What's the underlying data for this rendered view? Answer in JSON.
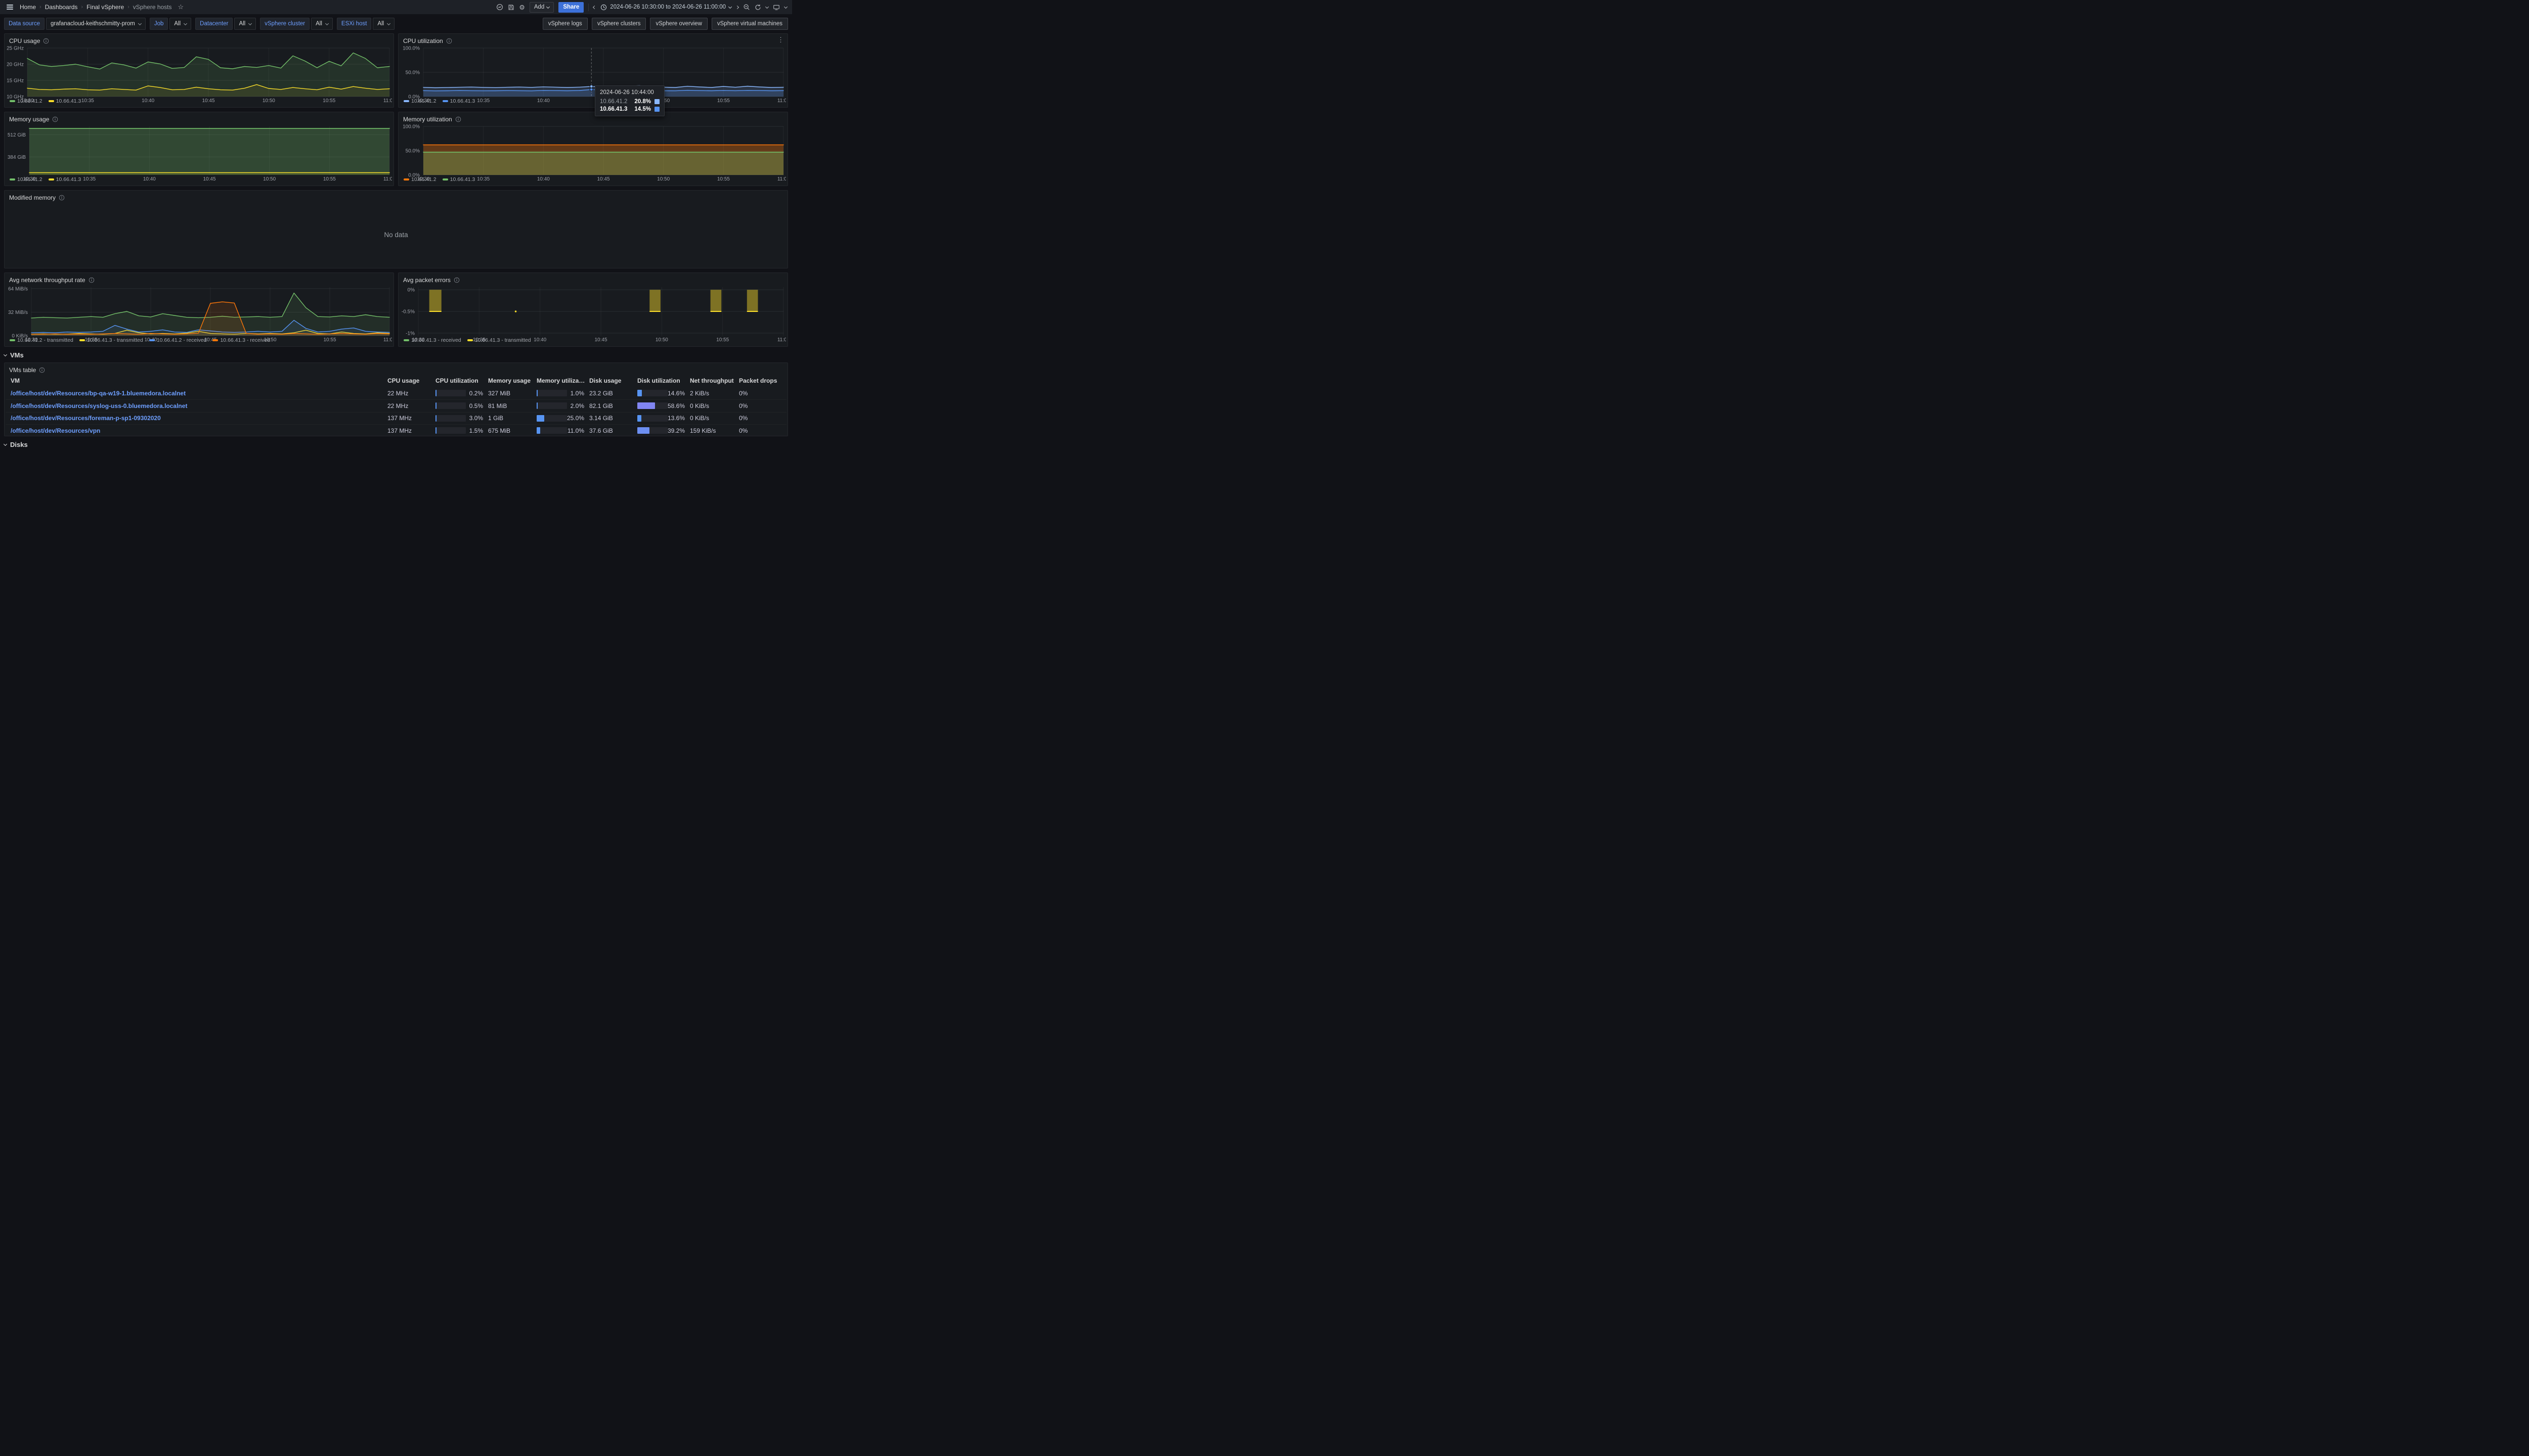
{
  "colors": {
    "accent_blue": "#3d71d9",
    "link_blue": "#6e9fff"
  },
  "topbar": {
    "breadcrumbs": [
      {
        "label": "Home"
      },
      {
        "label": "Dashboards"
      },
      {
        "label": "Final vSphere"
      },
      {
        "label": "vSphere hosts"
      }
    ],
    "add_label": "Add",
    "share_label": "Share",
    "time_range": "2024-06-26 10:30:00 to 2024-06-26 11:00:00"
  },
  "filters": {
    "data_source": {
      "label": "Data source",
      "value": "grafanacloud-keithschmitty-prom"
    },
    "items": [
      {
        "label": "Job",
        "value": "All"
      },
      {
        "label": "Datacenter",
        "value": "All"
      },
      {
        "label": "vSphere cluster",
        "value": "All"
      },
      {
        "label": "ESXi host",
        "value": "All"
      }
    ],
    "nav_buttons": [
      "vSphere logs",
      "vSphere clusters",
      "vSphere overview",
      "vSphere virtual machines"
    ]
  },
  "sections": {
    "vms_label": "VMs",
    "disks_label": "Disks"
  },
  "no_data_panel": {
    "title": "Modified memory",
    "message": "No data"
  },
  "tooltip": {
    "title": "2024-06-26 10:44:00",
    "rows": [
      {
        "name": "10.66.41.2",
        "value": "20.8%",
        "color": "#8ab8ff",
        "bold": false
      },
      {
        "name": "10.66.41.3",
        "value": "14.5%",
        "color": "#5794f2",
        "bold": true
      }
    ]
  },
  "chart_data": [
    {
      "type": "line",
      "title": "CPU usage",
      "minutes": 30,
      "gutter": 42,
      "ylim": [
        10,
        25
      ],
      "yticks": [
        {
          "v": 25,
          "label": "25 GHz"
        },
        {
          "v": 20,
          "label": "20 GHz"
        },
        {
          "v": 15,
          "label": "15 GHz"
        },
        {
          "v": 10,
          "label": "10 GHz"
        }
      ],
      "xticks": [
        "10:30",
        "10:35",
        "10:40",
        "10:45",
        "10:50",
        "10:55",
        "11:00"
      ],
      "series": [
        {
          "name": "10.66.41.2",
          "color": "#73bf69",
          "fill": 0.14,
          "values": [
            21.8,
            19.8,
            19.3,
            19.6,
            20.0,
            19.2,
            18.5,
            20.4,
            19.8,
            18.8,
            20.7,
            20.1,
            18.7,
            19.0,
            22.3,
            21.5,
            18.9,
            18.6,
            19.3,
            19.0,
            19.6,
            18.8,
            22.6,
            21.0,
            18.9,
            20.9,
            19.5,
            23.5,
            21.8,
            18.9,
            19.3
          ]
        },
        {
          "name": "10.66.41.3",
          "color": "#fade2a",
          "fill": 0.08,
          "values": [
            12.6,
            12.2,
            12.1,
            12.3,
            12.4,
            12.1,
            12.0,
            12.4,
            12.2,
            12.0,
            13.3,
            12.8,
            12.1,
            12.2,
            12.9,
            12.4,
            12.1,
            12.0,
            12.6,
            13.7,
            12.5,
            12.2,
            12.8,
            12.4,
            12.1,
            12.9,
            12.3,
            13.1,
            12.6,
            12.2,
            12.4
          ]
        }
      ]
    },
    {
      "type": "line",
      "title": "CPU utilization",
      "minutes": 30,
      "gutter": 46,
      "ylim": [
        0,
        100
      ],
      "yticks": [
        {
          "v": 100,
          "label": "100.0%"
        },
        {
          "v": 50,
          "label": "50.0%"
        },
        {
          "v": 0,
          "label": "0.0%"
        }
      ],
      "xticks": [
        "10:30",
        "10:35",
        "10:40",
        "10:45",
        "10:50",
        "10:55",
        "11:00"
      ],
      "crosshair": {
        "m": 14
      },
      "series": [
        {
          "name": "10.66.41.2",
          "color": "#8ab8ff",
          "fill": 0.16,
          "values": [
            19.0,
            18.2,
            18.6,
            19.2,
            19.6,
            19.0,
            18.4,
            19.2,
            19.6,
            19.0,
            20.0,
            19.4,
            18.8,
            19.4,
            20.8,
            20.2,
            19.4,
            21.6,
            22.4,
            19.8,
            19.4,
            18.8,
            21.2,
            19.8,
            18.8,
            20.8,
            19.2,
            21.4,
            19.8,
            18.8,
            19.2
          ]
        },
        {
          "name": "10.66.41.3",
          "color": "#5794f2",
          "fill": 0.16,
          "values": [
            12.2,
            11.8,
            12.0,
            12.4,
            12.1,
            11.9,
            12.0,
            12.3,
            12.1,
            11.8,
            12.6,
            12.3,
            12.0,
            12.5,
            14.5,
            13.2,
            12.3,
            12.6,
            13.1,
            12.4,
            12.0,
            11.9,
            12.9,
            12.3,
            12.0,
            12.6,
            12.1,
            12.7,
            12.4,
            12.0,
            12.2
          ]
        }
      ]
    },
    {
      "type": "line",
      "title": "Memory usage",
      "minutes": 30,
      "gutter": 46,
      "ylim": [
        280,
        560
      ],
      "yticks": [
        {
          "v": 512,
          "label": "512 GiB"
        },
        {
          "v": 384,
          "label": "384 GiB"
        }
      ],
      "xticks": [
        "10:30",
        "10:35",
        "10:40",
        "10:45",
        "10:50",
        "10:55",
        "11:00"
      ],
      "series": [
        {
          "name": "10.66.41.2",
          "color": "#73bf69",
          "fill": 0.28,
          "width": 1.6,
          "values": [
            548,
            548
          ]
        },
        {
          "name": "10.66.41.3",
          "color": "#fade2a",
          "fill": 0.1,
          "width": 1.6,
          "values": [
            293,
            293
          ]
        }
      ]
    },
    {
      "type": "line",
      "title": "Memory utilization",
      "minutes": 30,
      "gutter": 46,
      "ylim": [
        0,
        100
      ],
      "yticks": [
        {
          "v": 100,
          "label": "100.0%"
        },
        {
          "v": 50,
          "label": "50.0%"
        },
        {
          "v": 0,
          "label": "0.0%"
        }
      ],
      "xticks": [
        "10:30",
        "10:35",
        "10:40",
        "10:45",
        "10:50",
        "10:55",
        "11:00"
      ],
      "series": [
        {
          "name": "10.66.41.2",
          "color": "#ff780a",
          "fill": 0.32,
          "width": 1.6,
          "values": [
            62,
            62
          ]
        },
        {
          "name": "10.66.41.3",
          "color": "#73bf69",
          "fill": 0.32,
          "width": 1.6,
          "values": [
            47,
            47
          ]
        }
      ]
    },
    {
      "type": "line",
      "title": "Avg network throughput rate",
      "minutes": 30,
      "gutter": 50,
      "ylim": [
        0,
        66
      ],
      "yticks": [
        {
          "v": 64,
          "label": "64 MiB/s"
        },
        {
          "v": 32,
          "label": "32 MiB/s"
        },
        {
          "v": 0,
          "label": "0 KiB/s"
        }
      ],
      "xticks": [
        "10:30",
        "10:35",
        "10:40",
        "10:45",
        "10:50",
        "10:55",
        "11:00"
      ],
      "series": [
        {
          "name": "10.66.41.2 - transmitted",
          "color": "#73bf69",
          "fill": 0.12,
          "values": [
            24,
            25,
            24.5,
            24,
            25,
            26,
            25,
            30,
            33,
            27,
            25.5,
            30,
            27.5,
            25,
            24.5,
            25,
            26.5,
            25,
            25.5,
            26,
            25,
            26,
            58,
            38,
            26,
            25.5,
            27,
            26,
            28.5,
            26,
            25
          ]
        },
        {
          "name": "10.66.41.3 - transmitted",
          "color": "#fade2a",
          "fill": 0.08,
          "values": [
            2,
            2.5,
            2,
            2.2,
            3,
            2.5,
            2,
            3,
            7.5,
            4,
            2.5,
            3,
            2.5,
            3.5,
            6,
            3,
            2.5,
            2,
            3,
            2.5,
            3,
            2.5,
            4,
            7.5,
            3,
            2.5,
            5,
            3,
            2.5,
            4,
            3
          ]
        },
        {
          "name": "10.66.41.2 - received",
          "color": "#5794f2",
          "fill": 0.1,
          "values": [
            4,
            4.5,
            4,
            5,
            4.5,
            5,
            6,
            14,
            9,
            5,
            6,
            8,
            5,
            4.5,
            8,
            6.5,
            5,
            4.5,
            5,
            6,
            5,
            6,
            21,
            10,
            5,
            6,
            9,
            10.5,
            6,
            5,
            4.5
          ]
        },
        {
          "name": "10.66.41.3 - received",
          "color": "#ff780a",
          "fill": 0.12,
          "values": [
            2,
            2,
            2.5,
            2,
            2.2,
            2,
            2.5,
            3,
            2.5,
            2,
            3,
            2.5,
            2,
            2.5,
            3.5,
            44,
            46,
            44.5,
            3,
            2,
            2.5,
            2,
            3,
            2.5,
            2,
            2.5,
            3,
            2.5,
            2,
            3,
            2.5
          ]
        }
      ]
    },
    {
      "type": "bars",
      "title": "Avg packet errors",
      "minutes": 30,
      "gutter": 36,
      "ylim": [
        -1.06,
        0.06
      ],
      "yticks": [
        {
          "v": 0,
          "label": "0%"
        },
        {
          "v": -0.5,
          "label": "-0.5%"
        },
        {
          "v": -1,
          "label": "-1%"
        }
      ],
      "xticks": [
        "10:30",
        "10:35",
        "10:40",
        "10:45",
        "10:50",
        "10:55",
        "11:00"
      ],
      "bar_color": "#fade2a",
      "bars": [
        {
          "x": 0.9,
          "w": 1.0,
          "v": -0.5
        },
        {
          "x": 19.0,
          "w": 0.9,
          "v": -0.5
        },
        {
          "x": 24.0,
          "w": 0.9,
          "v": -0.5
        },
        {
          "x": 27.0,
          "w": 0.9,
          "v": -0.5
        }
      ],
      "dots": [
        {
          "x": 8.0,
          "v": -0.5
        }
      ],
      "legend": [
        {
          "name": "10.66.41.3 - received",
          "color": "#73bf69"
        },
        {
          "name": "10.66.41.3 - transmitted",
          "color": "#fade2a"
        }
      ]
    }
  ],
  "vms_table": {
    "title": "VMs table",
    "columns": [
      "VM",
      "CPU usage",
      "CPU utilization",
      "Memory usage",
      "Memory utilization",
      "Disk usage",
      "Disk utilization",
      "Net throughput",
      "Packet drops"
    ],
    "rows": [
      {
        "vm": "/office/host/dev/Resources/bp-qa-w19-1.bluemedora.localnet",
        "cpu_usage": "22 MHz",
        "cpu_utilization": {
          "pct": 0.2,
          "text": "0.2%",
          "color": "#5794f2"
        },
        "memory_usage": "327 MiB",
        "memory_utilization": {
          "pct": 1.0,
          "text": "1.0%",
          "color": "#5794f2"
        },
        "disk_usage": "23.2 GiB",
        "disk_utilization": {
          "pct": 14.6,
          "text": "14.6%",
          "color": "#5794f2"
        },
        "net_throughput": "2 KiB/s",
        "packet_drops": "0%"
      },
      {
        "vm": "/office/host/dev/Resources/syslog-uss-0.bluemedora.localnet",
        "cpu_usage": "22 MHz",
        "cpu_utilization": {
          "pct": 0.5,
          "text": "0.5%",
          "color": "#5794f2"
        },
        "memory_usage": "81 MiB",
        "memory_utilization": {
          "pct": 2.0,
          "text": "2.0%",
          "color": "#5794f2"
        },
        "disk_usage": "82.1 GiB",
        "disk_utilization": {
          "pct": 58.6,
          "text": "58.6%",
          "color": "#8185f2"
        },
        "net_throughput": "0 KiB/s",
        "packet_drops": "0%"
      },
      {
        "vm": "/office/host/dev/Resources/foreman-p-sp1-09302020",
        "cpu_usage": "137 MHz",
        "cpu_utilization": {
          "pct": 3.0,
          "text": "3.0%",
          "color": "#5794f2"
        },
        "memory_usage": "1 GiB",
        "memory_utilization": {
          "pct": 25.0,
          "text": "25.0%",
          "color": "#5794f2"
        },
        "disk_usage": "3.14 GiB",
        "disk_utilization": {
          "pct": 13.6,
          "text": "13.6%",
          "color": "#5794f2"
        },
        "net_throughput": "0 KiB/s",
        "packet_drops": "0%"
      },
      {
        "vm": "/office/host/dev/Resources/vpn",
        "cpu_usage": "137 MHz",
        "cpu_utilization": {
          "pct": 1.5,
          "text": "1.5%",
          "color": "#5794f2"
        },
        "memory_usage": "675 MiB",
        "memory_utilization": {
          "pct": 11.0,
          "text": "11.0%",
          "color": "#5794f2"
        },
        "disk_usage": "37.6 GiB",
        "disk_utilization": {
          "pct": 39.2,
          "text": "39.2%",
          "color": "#6d8ff2"
        },
        "net_throughput": "159 KiB/s",
        "packet_drops": "0%"
      }
    ]
  }
}
